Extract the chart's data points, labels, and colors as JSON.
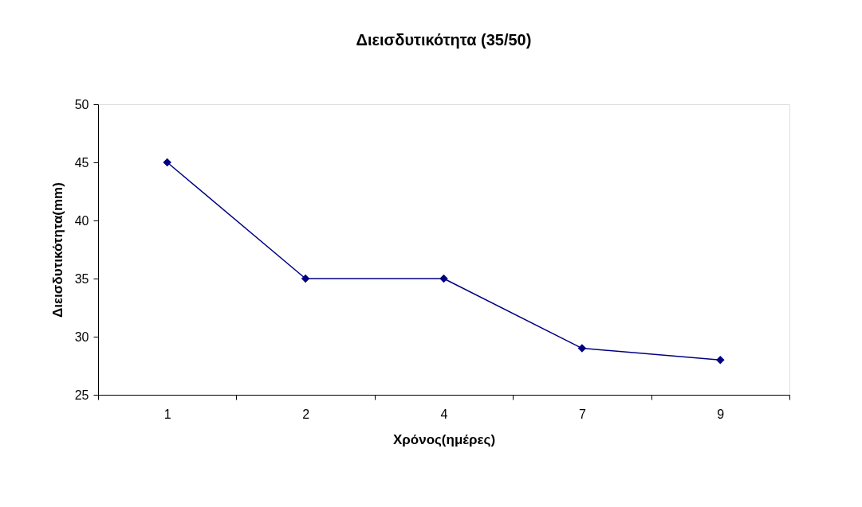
{
  "chart_data": {
    "type": "line",
    "title": "Διεισδυτικότητα (35/50)",
    "xlabel": "Χρόνος(ημέρες)",
    "ylabel": "Διεισδυτικότητα(mm)",
    "categories": [
      "1",
      "2",
      "4",
      "7",
      "9"
    ],
    "series": [
      {
        "color": "#000080",
        "values": [
          45,
          35,
          35,
          29,
          28
        ]
      }
    ],
    "ylim": [
      25,
      50
    ],
    "yticks": [
      25,
      30,
      35,
      40,
      45,
      50
    ],
    "marker": "diamond",
    "line_style": "solid"
  }
}
